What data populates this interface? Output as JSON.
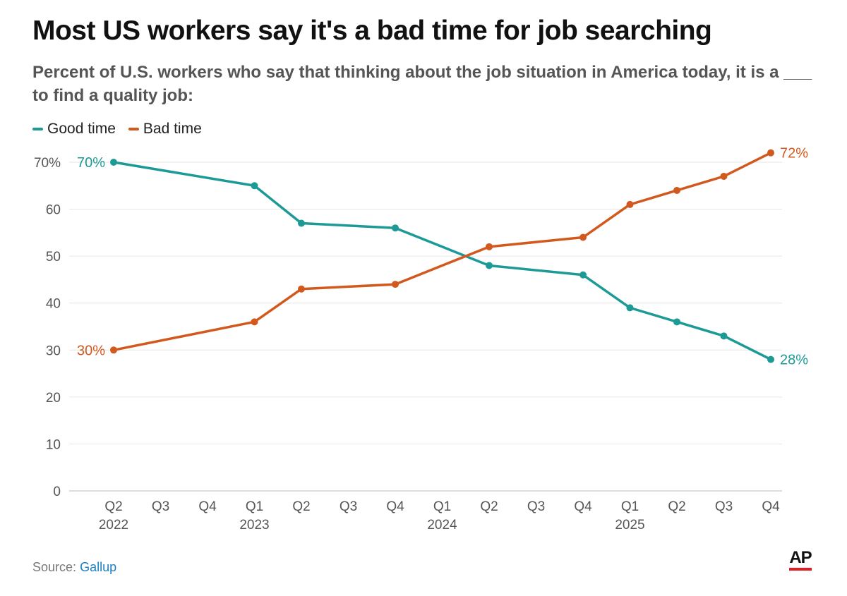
{
  "header": {
    "title": "Most US workers say it's a bad time for job searching",
    "subtitle": "Percent of U.S. workers who say that thinking about the job situation in America today, it is a ___ to find a quality job:"
  },
  "footer": {
    "source_label": "Source:",
    "source_name": "Gallup",
    "logo_text": "AP"
  },
  "colors": {
    "good": "#1d9a96",
    "bad": "#d2591e",
    "grid": "#e6e6e6",
    "tick": "#555555"
  },
  "chart_data": {
    "type": "line",
    "title": "Most US workers say it's a bad time for job searching",
    "xlabel": "",
    "ylabel": "",
    "ylim": [
      0,
      70
    ],
    "yticks": [
      0,
      10,
      20,
      30,
      40,
      50,
      60,
      70
    ],
    "ytick_labels": [
      "0",
      "10",
      "20",
      "30",
      "40",
      "50",
      "60",
      "70%"
    ],
    "x_ticks": [
      {
        "label": "Q2",
        "year": "2022"
      },
      {
        "label": "Q3",
        "year": ""
      },
      {
        "label": "Q4",
        "year": ""
      },
      {
        "label": "Q1",
        "year": "2023"
      },
      {
        "label": "Q2",
        "year": ""
      },
      {
        "label": "Q3",
        "year": ""
      },
      {
        "label": "Q4",
        "year": ""
      },
      {
        "label": "Q1",
        "year": "2024"
      },
      {
        "label": "Q2",
        "year": ""
      },
      {
        "label": "Q3",
        "year": ""
      },
      {
        "label": "Q4",
        "year": ""
      },
      {
        "label": "Q1",
        "year": "2025"
      },
      {
        "label": "Q2",
        "year": ""
      },
      {
        "label": "Q3",
        "year": ""
      },
      {
        "label": "Q4",
        "year": ""
      }
    ],
    "legend_position": "top-left",
    "grid": true,
    "series": [
      {
        "name": "Good time",
        "key": "good",
        "x": [
          0,
          3,
          4,
          6,
          8,
          10,
          11,
          12,
          13,
          14
        ],
        "values": [
          70,
          65,
          57,
          56,
          48,
          46,
          39,
          36,
          33,
          28
        ],
        "start_label": "70%",
        "end_label": "28%"
      },
      {
        "name": "Bad time",
        "key": "bad",
        "x": [
          0,
          3,
          4,
          6,
          8,
          10,
          11,
          12,
          13,
          14
        ],
        "values": [
          30,
          36,
          43,
          44,
          52,
          54,
          61,
          64,
          67,
          72
        ],
        "start_label": "30%",
        "end_label": "72%"
      }
    ]
  }
}
